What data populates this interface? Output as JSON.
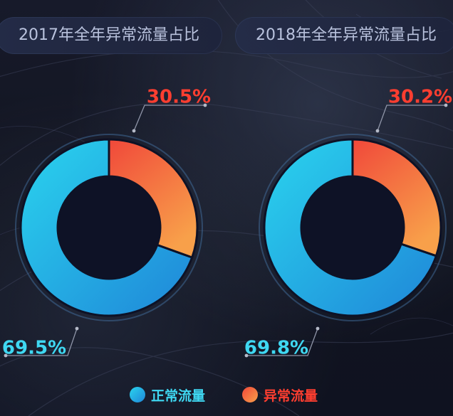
{
  "colors": {
    "normal_start": "#2ad4ee",
    "normal_end": "#1f86d8",
    "abnormal_start": "#f0483a",
    "abnormal_end": "#f8a04a",
    "normal_text": "#3fd8f2",
    "abnormal_text": "#ff3e30",
    "hole": "#0e1226",
    "title_bg": "#262d48"
  },
  "legend": {
    "normal_label": "正常流量",
    "abnormal_label": "异常流量",
    "normal_icon": "circle-dot-icon",
    "abnormal_icon": "circle-dot-icon"
  },
  "chart_data": [
    {
      "type": "pie",
      "title": "2017年全年异常流量占比",
      "categories": [
        "正常流量",
        "异常流量"
      ],
      "values": [
        69.5,
        30.5
      ],
      "labels": [
        "69.5%",
        "30.5%"
      ],
      "legend_position": "bottom"
    },
    {
      "type": "pie",
      "title": "2018年全年异常流量占比",
      "categories": [
        "正常流量",
        "异常流量"
      ],
      "values": [
        69.8,
        30.2
      ],
      "labels": [
        "69.8%",
        "30.2%"
      ],
      "legend_position": "bottom"
    }
  ]
}
